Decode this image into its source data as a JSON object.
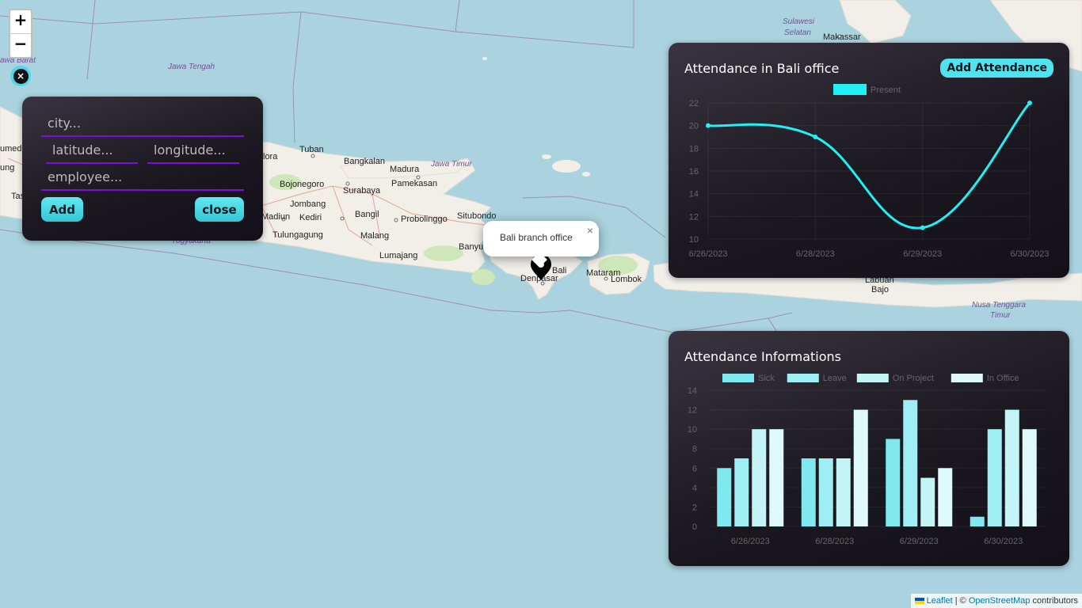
{
  "map": {
    "city_labels": [
      {
        "text": "Jawa Tengah",
        "italic": true
      },
      {
        "text": "Jawa Timur",
        "italic": true
      },
      {
        "text": "Sulawesi",
        "italic": true
      },
      {
        "text": "Selatan",
        "italic": true
      },
      {
        "text": "Makassar",
        "italic": false
      },
      {
        "text": "awa Barat",
        "italic": true
      },
      {
        "text": "Tuban",
        "italic": false
      },
      {
        "text": "Bangkalan",
        "italic": false
      },
      {
        "text": "Madura",
        "italic": false
      },
      {
        "text": "Bojonegoro",
        "italic": false
      },
      {
        "text": "Surabaya",
        "italic": false
      },
      {
        "text": "Pamekasan",
        "italic": false
      },
      {
        "text": "Jombang",
        "italic": false
      },
      {
        "text": "Madiun",
        "italic": false
      },
      {
        "text": "Kediri",
        "italic": false
      },
      {
        "text": "Bangil",
        "italic": false
      },
      {
        "text": "Probolinggo",
        "italic": false
      },
      {
        "text": "Situbondo",
        "italic": false
      },
      {
        "text": "Tulungagung",
        "italic": false
      },
      {
        "text": "Malang",
        "italic": false
      },
      {
        "text": "Yogyakarta",
        "italic": true
      },
      {
        "text": "Lumajang",
        "italic": false
      },
      {
        "text": "Banyu",
        "italic": false
      },
      {
        "text": "Bali",
        "italic": false
      },
      {
        "text": "Denpasar",
        "italic": false
      },
      {
        "text": "Mataram",
        "italic": false
      },
      {
        "text": "Lombok",
        "italic": false
      },
      {
        "text": "Labuan",
        "italic": false
      },
      {
        "text": "Bajo",
        "italic": false
      },
      {
        "text": "Nusa Tenggara",
        "italic": true
      },
      {
        "text": "Timur",
        "italic": true
      },
      {
        "text": "lora",
        "italic": false
      },
      {
        "text": "umedi",
        "italic": false
      },
      {
        "text": "ung",
        "italic": false
      },
      {
        "text": "Tas",
        "italic": false
      }
    ],
    "zoom_in_label": "+",
    "zoom_out_label": "−",
    "close_label": "×",
    "popup": {
      "text": "Bali branch office",
      "close": "×"
    },
    "attribution": {
      "leaflet": "Leaflet",
      "sep": " | © ",
      "osm": "OpenStreetMap",
      "suffix": " contributors"
    }
  },
  "form": {
    "city_placeholder": "city...",
    "latitude_placeholder": "latitude...",
    "longitude_placeholder": "longitude...",
    "employee_placeholder": "employee...",
    "add_label": "Add",
    "close_label": "close"
  },
  "line_panel": {
    "title": "Attendance in Bali office",
    "add_button": "Add Attendance"
  },
  "bar_panel": {
    "title": "Attendance Informations"
  },
  "colors": {
    "present": "#22f0f5",
    "sick": "#7fe9ef",
    "leave": "#9feef3",
    "on_project": "#c3f4f6",
    "in_office": "#def9fa"
  },
  "chart_data": [
    {
      "type": "line",
      "categories": [
        "6/26/2023",
        "6/28/2023",
        "6/29/2023",
        "6/30/2023"
      ],
      "series": [
        {
          "name": "Present",
          "values": [
            20,
            19,
            11,
            22
          ]
        }
      ],
      "ylim": [
        10,
        22
      ],
      "yticks": [
        "22",
        "20",
        "18",
        "16",
        "14",
        "12",
        "10"
      ],
      "legend": "top"
    },
    {
      "type": "bar",
      "categories": [
        "6/26/2023",
        "6/28/2023",
        "6/29/2023",
        "6/30/2023"
      ],
      "series": [
        {
          "name": "Sick",
          "values": [
            6,
            7,
            9,
            1
          ]
        },
        {
          "name": "Leave",
          "values": [
            7,
            7,
            13,
            10
          ]
        },
        {
          "name": "On Project",
          "values": [
            10,
            7,
            5,
            12
          ]
        },
        {
          "name": "In Office",
          "values": [
            10,
            12,
            6,
            10
          ]
        }
      ],
      "ylim": [
        0,
        14
      ],
      "yticks": [
        "14",
        "12",
        "10",
        "8",
        "6",
        "4",
        "2",
        "0"
      ],
      "legend": "top"
    }
  ]
}
